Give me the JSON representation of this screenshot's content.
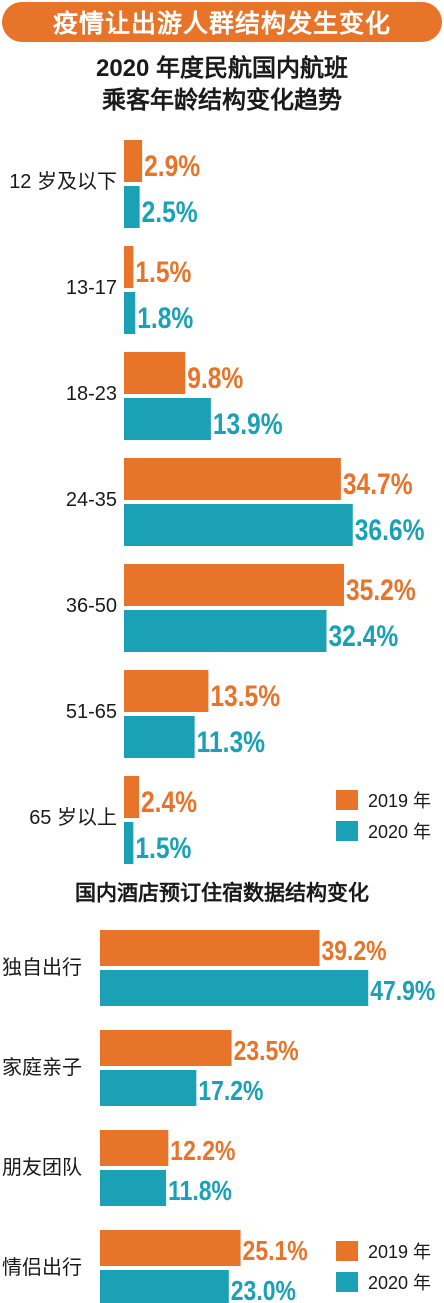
{
  "header": {
    "banner": "疫情让出游人群结构发生变化"
  },
  "colors": {
    "2019": "#e8742a",
    "2020": "#1aa1b5"
  },
  "chart_data": [
    {
      "type": "bar",
      "orientation": "horizontal",
      "title_line1": "2020 年度民航国内航班",
      "title_line2": "乘客年龄结构变化趋势",
      "categories": [
        "12 岁及以下",
        "13-17",
        "18-23",
        "24-35",
        "36-50",
        "51-65",
        "65 岁以上"
      ],
      "series": [
        {
          "name": "2019 年",
          "values": [
            2.9,
            1.5,
            9.8,
            34.7,
            35.2,
            13.5,
            2.4
          ],
          "labels": [
            "2.9%",
            "1.5%",
            "9.8%",
            "34.7%",
            "35.2%",
            "13.5%",
            "2.4%"
          ]
        },
        {
          "name": "2020 年",
          "values": [
            2.5,
            1.8,
            13.9,
            36.6,
            32.4,
            11.3,
            1.5
          ],
          "labels": [
            "2.5%",
            "1.8%",
            "13.9%",
            "36.6%",
            "32.4%",
            "11.3%",
            "1.5%"
          ]
        }
      ],
      "legend_position": "bottom-right"
    },
    {
      "type": "bar",
      "orientation": "horizontal",
      "title": "国内酒店预订住宿数据结构变化",
      "categories": [
        "独自出行",
        "家庭亲子",
        "朋友团队",
        "情侣出行"
      ],
      "series": [
        {
          "name": "2019 年",
          "values": [
            39.2,
            23.5,
            12.2,
            25.1
          ],
          "labels": [
            "39.2%",
            "23.5%",
            "12.2%",
            "25.1%"
          ]
        },
        {
          "name": "2020 年",
          "values": [
            47.9,
            17.2,
            11.8,
            23.0
          ],
          "labels": [
            "47.9%",
            "17.2%",
            "11.8%",
            "23.0%"
          ]
        }
      ],
      "legend_position": "bottom-right"
    }
  ]
}
